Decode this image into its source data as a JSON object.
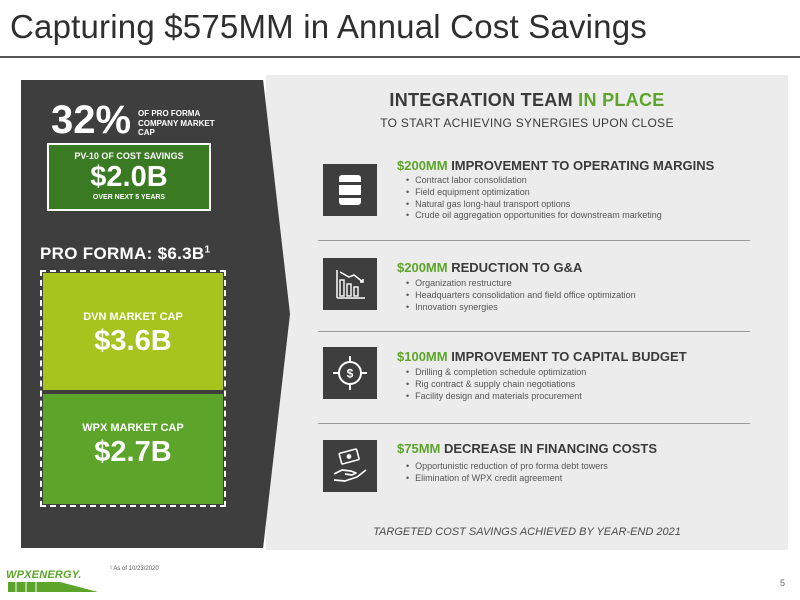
{
  "slide": {
    "title": "Capturing $575MM in Annual Cost Savings",
    "page_number": "5",
    "footnote": "¹ As of 10/23/2020",
    "logo_text": "WPXENERGY."
  },
  "left_panel": {
    "percent": "32%",
    "percent_label": "OF PRO FORMA COMPANY MARKET CAP",
    "pv_label": "PV-10 OF COST SAVINGS",
    "pv_value": "$2.0B",
    "pv_sub": "OVER NEXT 5 YEARS",
    "proforma_label": "PRO FORMA: $6.3B",
    "proforma_sup": "1",
    "dvn_label": "DVN MARKET CAP",
    "dvn_value": "$3.6B",
    "wpx_label": "WPX MARKET CAP",
    "wpx_value": "$2.7B"
  },
  "integration": {
    "title_a": "INTEGRATION TEAM ",
    "title_b": "IN PLACE",
    "subtitle": "TO START ACHIEVING SYNERGIES UPON CLOSE",
    "footer": "TARGETED COST SAVINGS ACHIEVED BY YEAR-END 2021"
  },
  "items": [
    {
      "icon": "oil-barrel-icon",
      "amount": "$200MM",
      "title": " IMPROVEMENT TO OPERATING MARGINS",
      "bullets": [
        "Contract labor consolidation",
        "Field equipment optimization",
        "Natural gas long-haul transport options",
        "Crude oil aggregation opportunities for downstream marketing"
      ]
    },
    {
      "icon": "declining-bar-chart-icon",
      "amount": "$200MM",
      "title": " REDUCTION TO G&A",
      "bullets": [
        "Organization restructure",
        "Headquarters consolidation and field office optimization",
        "Innovation synergies"
      ]
    },
    {
      "icon": "dollar-target-icon",
      "amount": "$100MM",
      "title": " IMPROVEMENT TO CAPITAL BUDGET",
      "bullets": [
        "Drilling & completion schedule optimization",
        "Rig contract & supply chain negotiations",
        "Facility design and materials procurement"
      ]
    },
    {
      "icon": "hand-money-icon",
      "amount": "$75MM",
      "title": " DECREASE IN FINANCING COSTS",
      "bullets": [
        "Opportunistic reduction of pro forma debt towers",
        "Elimination of WPX credit agreement"
      ]
    }
  ],
  "colors": {
    "accent_green": "#5da52a",
    "light_green": "#a7c41e",
    "dark_green": "#3a7a22",
    "dark_panel": "#3e3e3e",
    "light_panel": "#ececec"
  }
}
